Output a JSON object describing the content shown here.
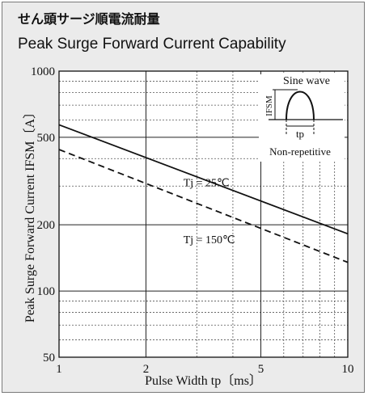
{
  "header": {
    "title_jp": "せん頭サージ順電流耐量",
    "title_en": "Peak Surge Forward Current Capability"
  },
  "chart_data": {
    "type": "line",
    "title": "Peak Surge Forward Current Capability",
    "xlabel": "Pulse Width  tp〔ms〕",
    "ylabel": "Peak Surge Forward Current  IFSM〔A〕",
    "x_scale": "log",
    "y_scale": "log",
    "xlim": [
      1,
      10
    ],
    "ylim": [
      50,
      1000
    ],
    "x_ticks": [
      "1",
      "2",
      "5",
      "10"
    ],
    "y_ticks": [
      "50",
      "100",
      "200",
      "500",
      "1000"
    ],
    "grid": true,
    "series": [
      {
        "name": "Tj = 25℃",
        "style": "solid",
        "x": [
          1,
          10
        ],
        "y": [
          570,
          182
        ]
      },
      {
        "name": "Tj = 150℃",
        "style": "dashed",
        "x": [
          1,
          10
        ],
        "y": [
          440,
          135
        ]
      }
    ],
    "inset": {
      "label_top": "Sine wave",
      "label_left": "IFSM",
      "label_tp": "tp",
      "label_bottom": "Non-repetitive"
    },
    "colors": {
      "background": "#ebebeb",
      "plot": "#ffffff",
      "line": "#111111",
      "grid": "#555555"
    }
  }
}
